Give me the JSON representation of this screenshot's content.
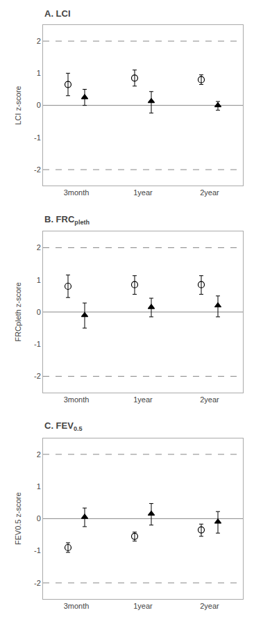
{
  "chart_data": [
    {
      "type": "scatter",
      "title": "A. LCI",
      "ylabel": "LCI z-score",
      "categories": [
        "3month",
        "1year",
        "2year"
      ],
      "series": [
        {
          "marker": "circle-open",
          "color": "#000000",
          "values": [
            0.65,
            0.85,
            0.8
          ],
          "error_lo": [
            0.35,
            0.25,
            0.15
          ],
          "error_hi": [
            0.35,
            0.25,
            0.15
          ]
        },
        {
          "marker": "triangle-up",
          "color": "#000000",
          "values": [
            0.25,
            0.13,
            0.0
          ],
          "error_lo": [
            0.25,
            0.37,
            0.15
          ],
          "error_hi": [
            0.25,
            0.3,
            0.12
          ]
        }
      ],
      "reference_lines": [
        {
          "y": 0,
          "line_style": "solid",
          "color": "#888888"
        },
        {
          "y": -2,
          "line_style": "dashed",
          "color": "#888888"
        },
        {
          "y": 2,
          "line_style": "dashed",
          "color": "#888888"
        }
      ],
      "ylim": [
        -2.5,
        2.5
      ],
      "yticks": [
        -2,
        -1,
        0,
        1,
        2
      ],
      "grid": false
    },
    {
      "type": "scatter",
      "title": "B. FRC",
      "title_subscript": "pleth",
      "ylabel": "FRCpleth z-score",
      "categories": [
        "3month",
        "1year",
        "2year"
      ],
      "series": [
        {
          "marker": "circle-open",
          "color": "#000000",
          "values": [
            0.8,
            0.85,
            0.85
          ],
          "error_lo": [
            0.35,
            0.3,
            0.3
          ],
          "error_hi": [
            0.35,
            0.28,
            0.28
          ]
        },
        {
          "marker": "triangle-up",
          "color": "#000000",
          "values": [
            -0.1,
            0.15,
            0.2
          ],
          "error_lo": [
            0.4,
            0.3,
            0.35
          ],
          "error_hi": [
            0.38,
            0.28,
            0.3
          ]
        }
      ],
      "reference_lines": [
        {
          "y": 0,
          "line_style": "solid",
          "color": "#888888"
        },
        {
          "y": -2,
          "line_style": "dashed",
          "color": "#888888"
        },
        {
          "y": 2,
          "line_style": "dashed",
          "color": "#888888"
        }
      ],
      "ylim": [
        -2.5,
        2.5
      ],
      "yticks": [
        -2,
        -1,
        0,
        1,
        2
      ],
      "grid": false
    },
    {
      "type": "scatter",
      "title": "C. FEV",
      "title_subscript": "0.5",
      "ylabel": "FEV0.5 z-score",
      "categories": [
        "3month",
        "1year",
        "2year"
      ],
      "series": [
        {
          "marker": "circle-open",
          "color": "#000000",
          "values": [
            -0.9,
            -0.55,
            -0.35
          ],
          "error_lo": [
            0.15,
            0.15,
            0.2
          ],
          "error_hi": [
            0.15,
            0.13,
            0.18
          ]
        },
        {
          "marker": "triangle-up",
          "color": "#000000",
          "values": [
            0.05,
            0.15,
            -0.1
          ],
          "error_lo": [
            0.3,
            0.35,
            0.35
          ],
          "error_hi": [
            0.28,
            0.32,
            0.32
          ]
        }
      ],
      "reference_lines": [
        {
          "y": 0,
          "line_style": "solid",
          "color": "#888888"
        },
        {
          "y": -2,
          "line_style": "dashed",
          "color": "#888888"
        },
        {
          "y": 2,
          "line_style": "dashed",
          "color": "#888888"
        }
      ],
      "ylim": [
        -2.5,
        2.5
      ],
      "yticks": [
        -2,
        -1,
        0,
        1,
        2
      ],
      "grid": false
    }
  ]
}
